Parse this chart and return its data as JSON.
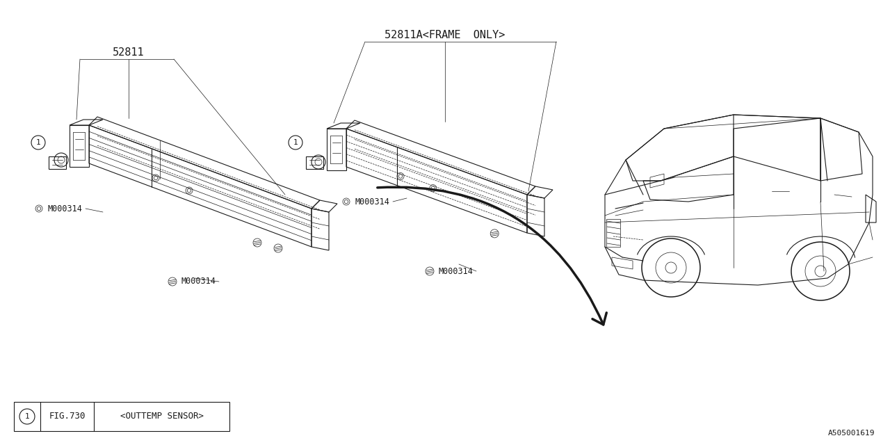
{
  "bg_color": "#ffffff",
  "line_color": "#1a1a1a",
  "part_label_1": "52811",
  "part_label_2": "52811A<FRAME  ONLY>",
  "bolt_label": "M000314",
  "legend_number": "1",
  "legend_fig": "FIG.730",
  "legend_text": "<OUTTEMP SENSOR>",
  "doc_id": "A505001619",
  "font_size_label": 8.5,
  "font_size_legend": 9,
  "font_size_docid": 8,
  "font_size_part": 11
}
